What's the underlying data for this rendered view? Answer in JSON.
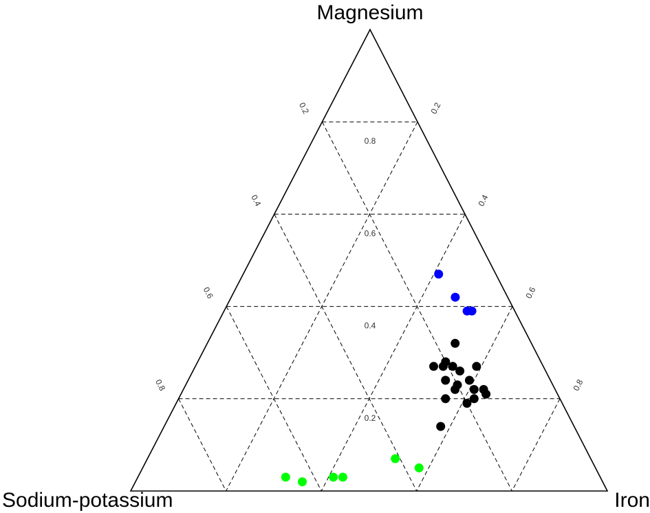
{
  "chart_data": {
    "type": "ternary-scatter",
    "vertices": {
      "top": "Magnesium",
      "left": "Sodium-potassium",
      "right": "Iron"
    },
    "grid": true,
    "grid_levels": [
      0.2,
      0.4,
      0.6,
      0.8
    ],
    "tick_labels": {
      "center": [
        "0.2",
        "0.4",
        "0.6",
        "0.8"
      ],
      "left_edge": [
        "0.2",
        "0.4",
        "0.6",
        "0.8"
      ],
      "right_edge": [
        "0.2",
        "0.4",
        "0.6",
        "0.8"
      ]
    },
    "series": [
      {
        "color": "#0000ff",
        "points": [
          {
            "magnesium": 0.47,
            "sodium_potassium": 0.12,
            "iron": 0.41
          },
          {
            "magnesium": 0.42,
            "sodium_potassium": 0.11,
            "iron": 0.47
          },
          {
            "magnesium": 0.39,
            "sodium_potassium": 0.1,
            "iron": 0.51
          },
          {
            "magnesium": 0.39,
            "sodium_potassium": 0.09,
            "iron": 0.52
          }
        ]
      },
      {
        "color": "#000000",
        "points": [
          {
            "magnesium": 0.32,
            "sodium_potassium": 0.16,
            "iron": 0.52
          },
          {
            "magnesium": 0.27,
            "sodium_potassium": 0.23,
            "iron": 0.5
          },
          {
            "magnesium": 0.27,
            "sodium_potassium": 0.21,
            "iron": 0.52
          },
          {
            "magnesium": 0.28,
            "sodium_potassium": 0.2,
            "iron": 0.52
          },
          {
            "magnesium": 0.27,
            "sodium_potassium": 0.19,
            "iron": 0.54
          },
          {
            "magnesium": 0.26,
            "sodium_potassium": 0.18,
            "iron": 0.56
          },
          {
            "magnesium": 0.27,
            "sodium_potassium": 0.14,
            "iron": 0.59
          },
          {
            "magnesium": 0.24,
            "sodium_potassium": 0.22,
            "iron": 0.54
          },
          {
            "magnesium": 0.23,
            "sodium_potassium": 0.2,
            "iron": 0.57
          },
          {
            "magnesium": 0.24,
            "sodium_potassium": 0.17,
            "iron": 0.59
          },
          {
            "magnesium": 0.2,
            "sodium_potassium": 0.24,
            "iron": 0.56
          },
          {
            "magnesium": 0.22,
            "sodium_potassium": 0.17,
            "iron": 0.61
          },
          {
            "magnesium": 0.22,
            "sodium_potassium": 0.21,
            "iron": 0.57
          },
          {
            "magnesium": 0.19,
            "sodium_potassium": 0.2,
            "iron": 0.61
          },
          {
            "magnesium": 0.2,
            "sodium_potassium": 0.18,
            "iron": 0.62
          },
          {
            "magnesium": 0.22,
            "sodium_potassium": 0.15,
            "iron": 0.63
          },
          {
            "magnesium": 0.21,
            "sodium_potassium": 0.15,
            "iron": 0.64
          },
          {
            "magnesium": 0.14,
            "sodium_potassium": 0.28,
            "iron": 0.58
          }
        ]
      },
      {
        "color": "#00ff00",
        "points": [
          {
            "magnesium": 0.07,
            "sodium_potassium": 0.41,
            "iron": 0.52
          },
          {
            "magnesium": 0.05,
            "sodium_potassium": 0.37,
            "iron": 0.58
          },
          {
            "magnesium": 0.03,
            "sodium_potassium": 0.66,
            "iron": 0.31
          },
          {
            "magnesium": 0.02,
            "sodium_potassium": 0.63,
            "iron": 0.35
          },
          {
            "magnesium": 0.03,
            "sodium_potassium": 0.56,
            "iron": 0.41
          },
          {
            "magnesium": 0.03,
            "sodium_potassium": 0.54,
            "iron": 0.43
          }
        ]
      }
    ]
  }
}
